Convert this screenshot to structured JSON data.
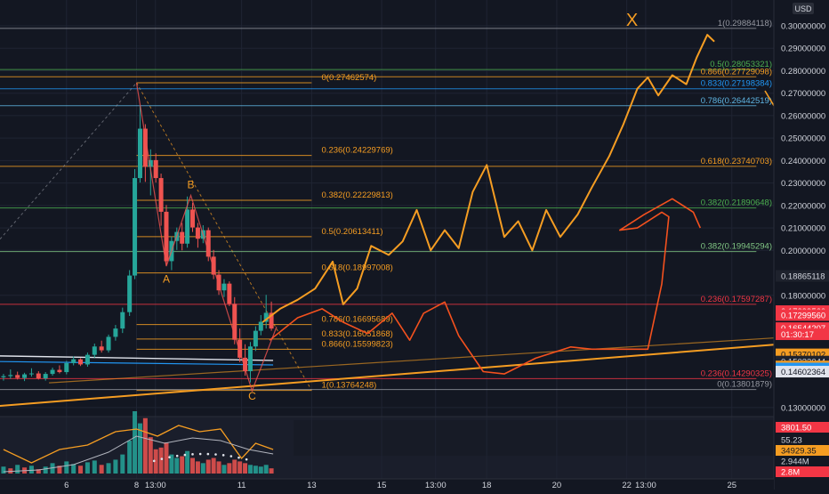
{
  "chart_data": {
    "type": "candlestick",
    "currency": "USD",
    "price_axis": {
      "ticks": [
        "0.30000000",
        "0.29000000",
        "0.28000000",
        "0.27000000",
        "0.26000000",
        "0.25000000",
        "0.24000000",
        "0.23000000",
        "0.22000000",
        "0.21000000",
        "0.20000000",
        "0.18000000",
        "0.13000000"
      ],
      "min": 0.126,
      "max": 0.3115
    },
    "time_axis": {
      "labels": [
        {
          "text": "6",
          "t": 6.0
        },
        {
          "text": "8",
          "t": 8.0
        },
        {
          "text": "13:00",
          "t": 8.54
        },
        {
          "text": "11",
          "t": 11.0
        },
        {
          "text": "13",
          "t": 13.0
        },
        {
          "text": "15",
          "t": 15.0
        },
        {
          "text": "13:00",
          "t": 16.54
        },
        {
          "text": "18",
          "t": 18.0
        },
        {
          "text": "20",
          "t": 20.0
        },
        {
          "text": "22",
          "t": 22.0
        },
        {
          "text": "13:00",
          "t": 22.54
        },
        {
          "text": "25",
          "t": 25.0
        }
      ],
      "t_start": 4.1,
      "t_end": 26.2
    },
    "price_tags": [
      {
        "text": "0.18865118",
        "price": 0.18865,
        "bg": "#1e222d",
        "fg": "#d1d4dc"
      },
      {
        "text": "0.17299560",
        "price": 0.17295,
        "bg": "#f23645",
        "fg": "#ffffff"
      },
      {
        "text": "0.17299560",
        "price": 0.1712,
        "bg": "#f23645",
        "fg": "#ffffff"
      },
      {
        "text": "0.16544207",
        "price": 0.1654,
        "bg": "#f23645",
        "fg": "#ffffff"
      },
      {
        "text": "01:30:17",
        "price": 0.16265,
        "bg": "#f23645",
        "fg": "#ffffff"
      },
      {
        "text": "0.15370102",
        "price": 0.1537,
        "bg": "#f59d22",
        "fg": "#131722"
      },
      {
        "text": "0.15032044",
        "price": 0.1505,
        "bg": "#1e222d",
        "fg": "#d1d4dc"
      },
      {
        "text": "0.15017461",
        "price": 0.1483,
        "bg": "#f59d22",
        "fg": "#131722"
      },
      {
        "text": "0.14744105",
        "price": 0.1474,
        "bg": "#2196f3",
        "fg": "#ffffff"
      },
      {
        "text": "0.14602364",
        "price": 0.146,
        "bg": "#e0e3eb",
        "fg": "#131722"
      }
    ],
    "fib_retracement_1": {
      "x_range_t": [
        8.0,
        13.0
      ],
      "levels": [
        {
          "label": "0(0.27462574)",
          "price": 0.27462574,
          "color": "#f59d22"
        },
        {
          "label": "0.236(0.24229769)",
          "price": 0.24229769,
          "color": "#f59d22"
        },
        {
          "label": "0.382(0.22229813)",
          "price": 0.22229813,
          "color": "#f59d22"
        },
        {
          "label": "0.5(0.20613411)",
          "price": 0.20613411,
          "color": "#f59d22"
        },
        {
          "label": "0.618(0.18997008)",
          "price": 0.18997008,
          "color": "#f59d22"
        },
        {
          "label": "0.786(0.16695689)",
          "price": 0.16695689,
          "color": "#f59d22"
        },
        {
          "label": "0.833(0.16051868)",
          "price": 0.16051868,
          "color": "#f59d22"
        },
        {
          "label": "0.866(0.15599823)",
          "price": 0.15599823,
          "color": "#f59d22"
        },
        {
          "label": "1(0.13764248)",
          "price": 0.13764248,
          "color": "#f59d22"
        }
      ]
    },
    "fib_retracement_2": {
      "x_range_t": [
        4.1,
        25.7
      ],
      "levels": [
        {
          "label": "1(0.29884118)",
          "price": 0.29884118,
          "color": "#9598a1"
        },
        {
          "label": "0.5(0.28053321)",
          "price": 0.28053321,
          "color": "#4caf50"
        },
        {
          "label": "0.866(0.27729098)",
          "price": 0.27729098,
          "color": "#f59d22"
        },
        {
          "label": "0.833(0.27198384)",
          "price": 0.27198384,
          "color": "#2196f3"
        },
        {
          "label": "0.786(0.26442519)",
          "price": 0.26442519,
          "color": "#5fb6e4"
        },
        {
          "label": "0.618(0.23740703)",
          "price": 0.23740703,
          "color": "#f59d22"
        },
        {
          "label": "0.382(0.21890648)",
          "price": 0.21890648,
          "color": "#4caf50"
        },
        {
          "label": "0.382(0.19945294)",
          "price": 0.19945294,
          "color": "#81c784"
        },
        {
          "label": "0.236(0.17597287)",
          "price": 0.17597287,
          "color": "#f23645"
        },
        {
          "label": "0.236(0.14290325)",
          "price": 0.14290325,
          "color": "#f23645"
        },
        {
          "label": "0(0.13801879)",
          "price": 0.13801879,
          "color": "#9598a1"
        }
      ]
    },
    "annotations": [
      {
        "text": "A",
        "t": 8.85,
        "price": 0.1857
      },
      {
        "text": "B",
        "t": 9.55,
        "price": 0.2277
      },
      {
        "text": "C",
        "t": 11.3,
        "price": 0.1335
      },
      {
        "text": "X",
        "t": 22.15,
        "price": 0.3
      }
    ],
    "candles": [
      [
        4.2,
        0.1435,
        0.145,
        0.142,
        0.144
      ],
      [
        4.4,
        0.144,
        0.147,
        0.1428,
        0.1445
      ],
      [
        4.6,
        0.1445,
        0.146,
        0.1425,
        0.1432
      ],
      [
        4.8,
        0.1432,
        0.1455,
        0.1418,
        0.1448
      ],
      [
        5.0,
        0.1448,
        0.1475,
        0.1438,
        0.1452
      ],
      [
        5.2,
        0.1452,
        0.1462,
        0.1425,
        0.143
      ],
      [
        5.4,
        0.143,
        0.1458,
        0.142,
        0.145
      ],
      [
        5.6,
        0.145,
        0.1478,
        0.1442,
        0.1468
      ],
      [
        5.8,
        0.1468,
        0.1488,
        0.1452,
        0.1458
      ],
      [
        6.0,
        0.1458,
        0.1508,
        0.1448,
        0.1498
      ],
      [
        6.2,
        0.1498,
        0.1528,
        0.1488,
        0.1515
      ],
      [
        6.4,
        0.1515,
        0.152,
        0.1485,
        0.1492
      ],
      [
        6.6,
        0.1492,
        0.1545,
        0.1482,
        0.1535
      ],
      [
        6.8,
        0.1535,
        0.1585,
        0.1522,
        0.1572
      ],
      [
        7.0,
        0.1572,
        0.1598,
        0.1545,
        0.1555
      ],
      [
        7.2,
        0.1555,
        0.1625,
        0.1545,
        0.1615
      ],
      [
        7.4,
        0.1615,
        0.1668,
        0.1598,
        0.1652
      ],
      [
        7.6,
        0.1652,
        0.1745,
        0.1632,
        0.1725
      ],
      [
        7.8,
        0.1725,
        0.1912,
        0.1708,
        0.1888
      ],
      [
        7.95,
        0.1888,
        0.2362,
        0.1872,
        0.2322
      ],
      [
        8.1,
        0.2322,
        0.2646,
        0.2302,
        0.2542
      ],
      [
        8.25,
        0.2542,
        0.2562,
        0.2305,
        0.2372
      ],
      [
        8.4,
        0.2372,
        0.245,
        0.2245,
        0.2402
      ],
      [
        8.55,
        0.2402,
        0.2432,
        0.2302,
        0.2322
      ],
      [
        8.7,
        0.2322,
        0.2342,
        0.211,
        0.2172
      ],
      [
        8.85,
        0.2172,
        0.2202,
        0.1932,
        0.1952
      ],
      [
        9.0,
        0.1952,
        0.2062,
        0.1912,
        0.2042
      ],
      [
        9.15,
        0.2042,
        0.2102,
        0.2002,
        0.2082
      ],
      [
        9.3,
        0.2082,
        0.2122,
        0.2,
        0.203
      ],
      [
        9.45,
        0.203,
        0.224,
        0.2012,
        0.2182
      ],
      [
        9.6,
        0.2182,
        0.2212,
        0.2082,
        0.2102
      ],
      [
        9.75,
        0.2102,
        0.2122,
        0.2012,
        0.2052
      ],
      [
        9.9,
        0.2052,
        0.2112,
        0.2032,
        0.209
      ],
      [
        10.05,
        0.209,
        0.2102,
        0.1952,
        0.1972
      ],
      [
        10.2,
        0.1972,
        0.2002,
        0.1872,
        0.1892
      ],
      [
        10.35,
        0.1892,
        0.1912,
        0.1802,
        0.1822
      ],
      [
        10.5,
        0.1822,
        0.1872,
        0.1792,
        0.1852
      ],
      [
        10.65,
        0.1852,
        0.1862,
        0.1752,
        0.1762
      ],
      [
        10.8,
        0.1762,
        0.1792,
        0.1582,
        0.1602
      ],
      [
        10.95,
        0.1602,
        0.1652,
        0.1502,
        0.1522
      ],
      [
        11.1,
        0.1522,
        0.1582,
        0.1442,
        0.1462
      ],
      [
        11.25,
        0.1462,
        0.1592,
        0.1412,
        0.1572
      ],
      [
        11.4,
        0.1572,
        0.1662,
        0.1552,
        0.1642
      ],
      [
        11.55,
        0.1642,
        0.1712,
        0.1622,
        0.1682
      ],
      [
        11.7,
        0.1682,
        0.1802,
        0.1652,
        0.1722
      ],
      [
        11.85,
        0.1722,
        0.1772,
        0.1642,
        0.1652
      ]
    ],
    "volume": [
      [
        4.2,
        8,
        1
      ],
      [
        4.4,
        6,
        0
      ],
      [
        4.6,
        10,
        1
      ],
      [
        4.8,
        7,
        0
      ],
      [
        5.0,
        9,
        1
      ],
      [
        5.2,
        5,
        0
      ],
      [
        5.4,
        8,
        1
      ],
      [
        5.6,
        12,
        1
      ],
      [
        5.8,
        9,
        0
      ],
      [
        6.0,
        14,
        1
      ],
      [
        6.2,
        11,
        1
      ],
      [
        6.4,
        9,
        0
      ],
      [
        6.6,
        13,
        1
      ],
      [
        6.8,
        15,
        1
      ],
      [
        7.0,
        10,
        0
      ],
      [
        7.2,
        12,
        1
      ],
      [
        7.4,
        16,
        1
      ],
      [
        7.6,
        22,
        1
      ],
      [
        7.8,
        38,
        1
      ],
      [
        7.95,
        72,
        1
      ],
      [
        8.1,
        58,
        1
      ],
      [
        8.25,
        64,
        0
      ],
      [
        8.4,
        42,
        0
      ],
      [
        8.55,
        28,
        0
      ],
      [
        8.7,
        30,
        0
      ],
      [
        8.85,
        36,
        0
      ],
      [
        9.0,
        22,
        1
      ],
      [
        9.15,
        18,
        1
      ],
      [
        9.3,
        20,
        0
      ],
      [
        9.45,
        26,
        1
      ],
      [
        9.6,
        18,
        0
      ],
      [
        9.75,
        14,
        0
      ],
      [
        9.9,
        12,
        1
      ],
      [
        10.05,
        16,
        0
      ],
      [
        10.2,
        18,
        0
      ],
      [
        10.35,
        14,
        0
      ],
      [
        10.5,
        10,
        1
      ],
      [
        10.65,
        12,
        0
      ],
      [
        10.8,
        16,
        0
      ],
      [
        10.95,
        14,
        0
      ],
      [
        11.1,
        12,
        0
      ],
      [
        11.25,
        10,
        1
      ],
      [
        11.4,
        9,
        1
      ],
      [
        11.55,
        8,
        1
      ],
      [
        11.7,
        10,
        1
      ],
      [
        11.85,
        6,
        0
      ]
    ],
    "indicator_labels": [
      {
        "text": "3801.50",
        "bg": "#f23645",
        "fg": "#ffffff"
      },
      {
        "text": "55.23",
        "bg": "#131722",
        "fg": "#d1d4dc"
      },
      {
        "text": "34929.35",
        "bg": "#f59d22",
        "fg": "#131722"
      },
      {
        "text": "2.944M",
        "bg": "#131722",
        "fg": "#d1d4dc"
      },
      {
        "text": "2.8M",
        "bg": "#f23645",
        "fg": "#ffffff"
      }
    ],
    "drawings": {
      "trendline_1": [
        [
          3.9,
          0.1305
        ],
        [
          26.2,
          0.158
        ]
      ],
      "trendline_2": [
        [
          5.5,
          0.141
        ],
        [
          26.2,
          0.161
        ]
      ],
      "orange_projection": [
        [
          11.6,
          0.168
        ],
        [
          12.1,
          0.174
        ],
        [
          12.6,
          0.178
        ],
        [
          13.1,
          0.183
        ],
        [
          13.6,
          0.195
        ],
        [
          13.9,
          0.176
        ],
        [
          14.3,
          0.183
        ],
        [
          14.7,
          0.202
        ],
        [
          15.2,
          0.198
        ],
        [
          15.6,
          0.204
        ],
        [
          16.0,
          0.218
        ],
        [
          16.4,
          0.2
        ],
        [
          16.8,
          0.209
        ],
        [
          17.2,
          0.201
        ],
        [
          17.6,
          0.226
        ],
        [
          18.0,
          0.238
        ],
        [
          18.5,
          0.206
        ],
        [
          18.9,
          0.213
        ],
        [
          19.3,
          0.2
        ],
        [
          19.7,
          0.218
        ],
        [
          20.1,
          0.206
        ],
        [
          20.6,
          0.216
        ],
        [
          21.0,
          0.228
        ],
        [
          21.5,
          0.242
        ],
        [
          21.9,
          0.256
        ],
        [
          22.3,
          0.272
        ],
        [
          22.6,
          0.277
        ],
        [
          22.9,
          0.269
        ],
        [
          23.3,
          0.278
        ],
        [
          23.7,
          0.274
        ],
        [
          24.0,
          0.286
        ],
        [
          24.3,
          0.296
        ],
        [
          24.5,
          0.293
        ]
      ],
      "red_projection": [
        [
          11.8,
          0.16
        ],
        [
          12.6,
          0.17
        ],
        [
          13.3,
          0.174
        ],
        [
          13.9,
          0.168
        ],
        [
          14.6,
          0.163
        ],
        [
          15.3,
          0.172
        ],
        [
          15.8,
          0.16
        ],
        [
          16.2,
          0.172
        ],
        [
          16.8,
          0.177
        ],
        [
          17.2,
          0.162
        ],
        [
          17.9,
          0.146
        ],
        [
          18.5,
          0.145
        ],
        [
          19.4,
          0.152
        ],
        [
          20.4,
          0.157
        ],
        [
          21.0,
          0.156
        ],
        [
          21.7,
          0.156
        ],
        [
          22.6,
          0.156
        ],
        [
          23.0,
          0.185
        ],
        [
          23.2,
          0.215
        ],
        [
          23.0,
          0.217
        ],
        [
          22.3,
          0.21
        ],
        [
          21.8,
          0.209
        ],
        [
          22.5,
          0.216
        ],
        [
          23.3,
          0.223
        ],
        [
          23.9,
          0.217
        ],
        [
          24.1,
          0.21
        ]
      ]
    }
  }
}
